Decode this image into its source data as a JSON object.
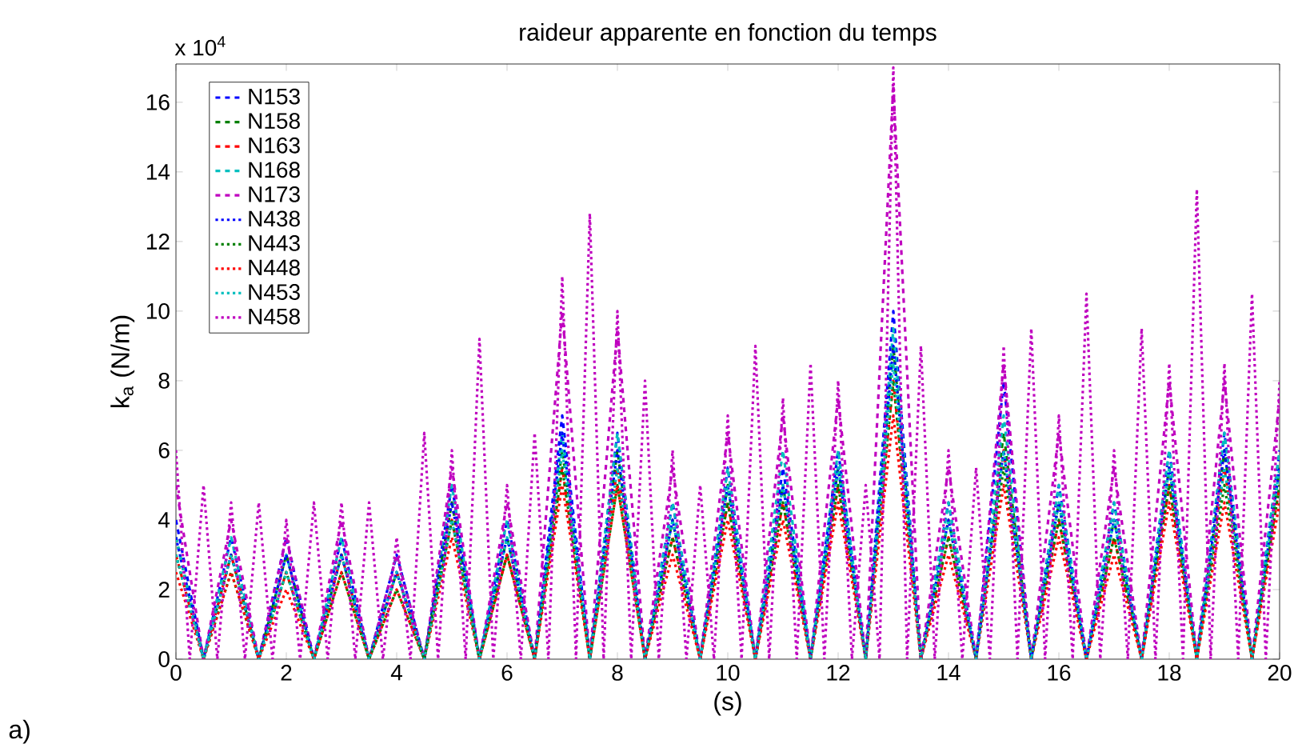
{
  "chart_data": {
    "type": "line",
    "title": "raideur apparente en fonction du temps",
    "xlabel": "(s)",
    "ylabel": "k$_{a}$ (N/m)",
    "annotations": [
      "x 10$^{4}$",
      "a)"
    ],
    "xlim": [
      0,
      20
    ],
    "ylim": [
      0,
      17.1
    ],
    "xticks": [
      0,
      2,
      4,
      6,
      8,
      10,
      12,
      14,
      16,
      18,
      20
    ],
    "yticks": [
      0,
      2,
      4,
      6,
      8,
      10,
      12,
      14,
      16
    ],
    "legend": "top left",
    "x": [
      0,
      0.5,
      1,
      1.5,
      2,
      2.5,
      3,
      3.5,
      4,
      4.5,
      5,
      5.5,
      6,
      6.5,
      7,
      7.5,
      8,
      8.5,
      9,
      9.5,
      10,
      10.5,
      11,
      11.5,
      12,
      12.5,
      13,
      13.5,
      14,
      14.5,
      15,
      15.5,
      16,
      16.5,
      17,
      17.5,
      18,
      18.5,
      19,
      19.5,
      20
    ],
    "series": [
      {
        "name": "N153",
        "color": "#0000ff",
        "line_style": "dashed",
        "values": [
          4,
          0,
          3.5,
          0,
          3.5,
          0,
          3.5,
          0,
          3,
          0,
          5,
          0,
          4,
          0,
          7,
          0,
          6.5,
          0,
          4.5,
          0,
          5.5,
          0,
          5.5,
          0,
          6,
          0,
          10,
          0,
          4.5,
          0,
          8,
          0,
          5,
          0,
          4.5,
          0,
          6,
          0,
          6.5,
          0,
          6
        ]
      },
      {
        "name": "N158",
        "color": "#008000",
        "line_style": "dashed",
        "values": [
          3.5,
          0,
          3,
          0,
          3,
          0,
          3,
          0,
          2.5,
          0,
          4.5,
          0,
          3.5,
          0,
          6,
          0,
          6,
          0,
          4,
          0,
          5,
          0,
          5,
          0,
          5.5,
          0,
          9,
          0,
          4,
          0,
          6.5,
          0,
          4.5,
          0,
          4,
          0,
          5.5,
          0,
          6,
          0,
          5.5
        ]
      },
      {
        "name": "N163",
        "color": "#ff0000",
        "line_style": "dashed",
        "values": [
          3,
          0,
          3,
          0,
          2.5,
          0,
          3,
          0,
          2.5,
          0,
          4,
          0,
          3,
          0,
          5.5,
          0,
          5.5,
          0,
          3.5,
          0,
          4.5,
          0,
          4.5,
          0,
          5,
          0,
          8,
          0,
          3.5,
          0,
          6,
          0,
          4,
          0,
          3.5,
          0,
          5,
          0,
          5.5,
          0,
          5
        ]
      },
      {
        "name": "N168",
        "color": "#00bfbf",
        "line_style": "dashed",
        "values": [
          3.5,
          0,
          3.5,
          0,
          3,
          0,
          3.5,
          0,
          3,
          0,
          5,
          0,
          4,
          0,
          6.5,
          0,
          6.5,
          0,
          4.5,
          0,
          5.5,
          0,
          6,
          0,
          6,
          0,
          9.5,
          0,
          4.5,
          0,
          7,
          0,
          5,
          0,
          4.5,
          0,
          6,
          0,
          6.5,
          0,
          6
        ]
      },
      {
        "name": "N173",
        "color": "#bf00bf",
        "line_style": "dashed",
        "values": [
          5,
          0,
          4,
          0,
          3.5,
          0,
          4,
          0,
          3,
          0,
          5.5,
          0,
          4.5,
          0,
          10,
          0,
          9.5,
          0,
          5.5,
          0,
          6.5,
          0,
          7,
          0,
          7.5,
          0,
          16.5,
          0,
          5.5,
          0,
          8.5,
          0,
          6.5,
          0,
          5.5,
          0,
          8,
          0,
          8,
          0,
          7.5
        ]
      },
      {
        "name": "N438",
        "color": "#0000ff",
        "line_style": "dotted",
        "values": [
          3.5,
          0,
          3,
          0,
          3,
          0,
          3,
          0,
          2.5,
          0,
          4.5,
          0,
          3.5,
          0,
          6.5,
          0,
          6,
          0,
          4,
          0,
          5,
          0,
          5,
          0,
          5.5,
          0,
          9,
          0,
          4,
          0,
          6,
          0,
          4.5,
          0,
          4,
          0,
          5.5,
          0,
          6,
          0,
          5.5
        ]
      },
      {
        "name": "N443",
        "color": "#008000",
        "line_style": "dotted",
        "values": [
          3,
          0,
          2.5,
          0,
          2.5,
          0,
          2.5,
          0,
          2,
          0,
          4,
          0,
          3,
          0,
          5.5,
          0,
          5,
          0,
          3.5,
          0,
          4.5,
          0,
          4.5,
          0,
          5,
          0,
          8,
          0,
          3.5,
          0,
          5.5,
          0,
          4,
          0,
          3.5,
          0,
          5,
          0,
          5,
          0,
          5
        ]
      },
      {
        "name": "N448",
        "color": "#ff0000",
        "line_style": "dotted",
        "values": [
          2.5,
          0,
          2.5,
          0,
          2,
          0,
          2.5,
          0,
          2,
          0,
          3.5,
          0,
          3,
          0,
          5,
          0,
          5,
          0,
          3,
          0,
          4,
          0,
          4,
          0,
          4.5,
          0,
          7,
          0,
          3,
          0,
          5,
          0,
          3.5,
          0,
          3,
          0,
          4.5,
          0,
          4.5,
          0,
          4.5
        ]
      },
      {
        "name": "N453",
        "color": "#00bfbf",
        "line_style": "dotted",
        "values": [
          3,
          0,
          3,
          0,
          2.5,
          0,
          3,
          0,
          2.5,
          0,
          4,
          0,
          3.5,
          0,
          6,
          0,
          5.5,
          0,
          4,
          0,
          5,
          0,
          5,
          0,
          5.5,
          0,
          8.5,
          0,
          4,
          0,
          6,
          0,
          4.5,
          0,
          4,
          0,
          5.5,
          0,
          5.5,
          0,
          5.5
        ]
      },
      {
        "name": "N458",
        "color": "#bf00bf",
        "line_style": "dotted",
        "x": [
          0,
          0.25,
          0.5,
          0.75,
          1,
          1.25,
          1.5,
          1.75,
          2,
          2.25,
          2.5,
          2.75,
          3,
          3.25,
          3.5,
          3.75,
          4,
          4.25,
          4.5,
          4.75,
          5,
          5.25,
          5.5,
          5.75,
          6,
          6.25,
          6.5,
          6.75,
          7,
          7.25,
          7.5,
          7.75,
          8,
          8.25,
          8.5,
          8.75,
          9,
          9.25,
          9.5,
          9.75,
          10,
          10.25,
          10.5,
          10.75,
          11,
          11.25,
          11.5,
          11.75,
          12,
          12.25,
          12.5,
          12.75,
          13,
          13.25,
          13.5,
          13.75,
          14,
          14.25,
          14.5,
          14.75,
          15,
          15.25,
          15.5,
          15.75,
          16,
          16.25,
          16.5,
          16.75,
          17,
          17.25,
          17.5,
          17.75,
          18,
          18.25,
          18.5,
          18.75,
          19,
          19.25,
          19.5,
          19.75,
          20
        ],
        "values": [
          6,
          0,
          5,
          0,
          4.5,
          0,
          4.5,
          0,
          4,
          0,
          4.5,
          0,
          4.5,
          0,
          4.5,
          0,
          3.5,
          0,
          6.5,
          0,
          6,
          0,
          9.2,
          0,
          5,
          0,
          6.5,
          0,
          11,
          0,
          12.8,
          0,
          10,
          0,
          8,
          0,
          6,
          0,
          5,
          0,
          7,
          0,
          9,
          0,
          7.5,
          0,
          8.5,
          0,
          8,
          0,
          5,
          0,
          17,
          0,
          9,
          0,
          6,
          0,
          5.5,
          0,
          9,
          0,
          9.5,
          0,
          7,
          0,
          10.5,
          0,
          6,
          0,
          9.5,
          0,
          8.5,
          0,
          13.5,
          0,
          8.5,
          0,
          10.5,
          0,
          8
        ]
      }
    ]
  }
}
